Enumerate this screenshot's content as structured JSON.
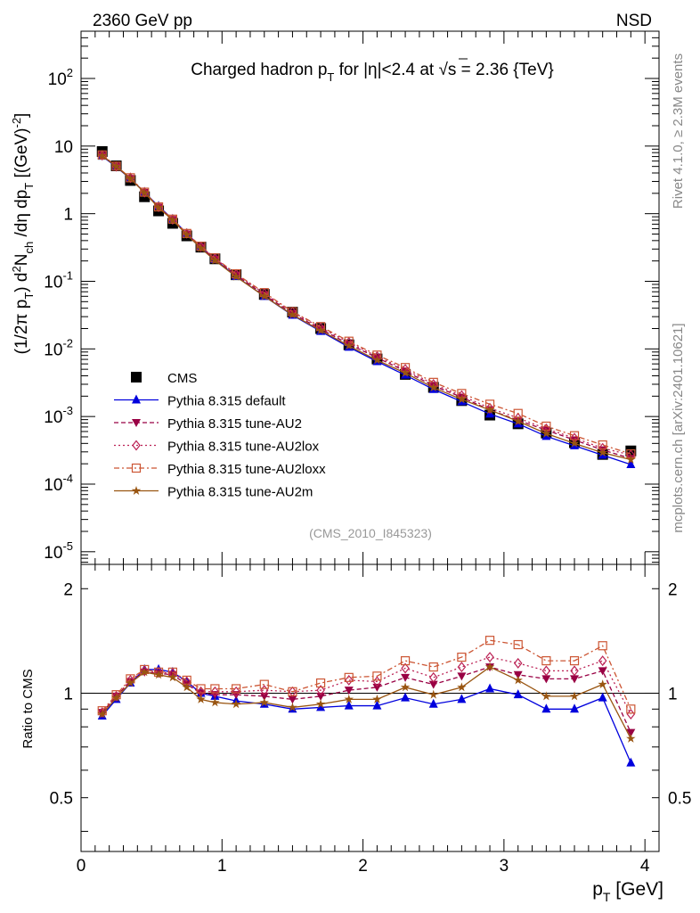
{
  "header": {
    "left": "2360 GeV pp",
    "right": "NSD"
  },
  "side_labels": {
    "top": "Rivet 4.1.0, ≥ 2.3M events",
    "bottom": "mcplots.cern.ch [arXiv:2401.10621]"
  },
  "colors": {
    "cms": "#000000",
    "default": "#0000dd",
    "au2": "#990044",
    "au2lox": "#bb2255",
    "au2loxx": "#cc5533",
    "au2m": "#995511"
  },
  "chart_data": [
    {
      "type": "line",
      "panel": "main",
      "title": "Charged hadron p_T for |η|<2.4 at √s = 2.36 {TeV}",
      "ylabel": "(1/2π p_T) d²N_ch /dη dp_T [(GeV)^-2]",
      "xlabel": "",
      "xlim": [
        0,
        4.1
      ],
      "ylim": [
        6.5e-06,
        500
      ],
      "yscale": "log",
      "x_ticks": [
        0,
        1,
        2,
        3,
        4
      ],
      "y_ticks": [
        {
          "value": 100,
          "label": "10^2"
        },
        {
          "value": 10,
          "label": "10"
        },
        {
          "value": 1,
          "label": "1"
        },
        {
          "value": 0.1,
          "label": "10^-1"
        },
        {
          "value": 0.01,
          "label": "10^-2"
        },
        {
          "value": 0.001,
          "label": "10^-3"
        },
        {
          "value": 0.0001,
          "label": "10^-4"
        },
        {
          "value": 1e-05,
          "label": "10^-5"
        }
      ],
      "watermark": "(CMS_2010_I845323)",
      "x": [
        0.15,
        0.25,
        0.35,
        0.45,
        0.55,
        0.65,
        0.75,
        0.85,
        0.95,
        1.1,
        1.3,
        1.5,
        1.7,
        1.9,
        2.1,
        2.3,
        2.5,
        2.7,
        2.9,
        3.1,
        3.3,
        3.5,
        3.7,
        3.9
      ],
      "series": [
        {
          "name": "CMS",
          "key": "cms",
          "marker": "square",
          "values": [
            8.3,
            5.1,
            3.1,
            1.78,
            1.1,
            0.72,
            0.47,
            0.32,
            0.215,
            0.125,
            0.064,
            0.035,
            0.02,
            0.0115,
            0.0071,
            0.0042,
            0.0027,
            0.00172,
            0.00105,
            0.00078,
            0.00057,
            0.00041,
            0.000275,
            0.00031
          ]
        },
        {
          "name": "Pythia 8.315 default",
          "key": "default",
          "marker": "triangle",
          "values": [
            7.1,
            4.9,
            3.3,
            2.08,
            1.29,
            0.83,
            0.51,
            0.32,
            0.21,
            0.118,
            0.06,
            0.0315,
            0.0182,
            0.0106,
            0.0065,
            0.0041,
            0.00252,
            0.00166,
            0.00109,
            0.00078,
            0.00051,
            0.00037,
            0.000268,
            0.000195
          ]
        },
        {
          "name": "Pythia 8.315 tune-AU2",
          "key": "au2",
          "marker": "inverted-triangle",
          "values": [
            7.3,
            5.0,
            3.3,
            2.06,
            1.25,
            0.82,
            0.5,
            0.32,
            0.213,
            0.124,
            0.063,
            0.0335,
            0.0196,
            0.0118,
            0.0074,
            0.0047,
            0.00285,
            0.00193,
            0.00125,
            0.00088,
            0.00063,
            0.00045,
            0.00032,
            0.00024
          ]
        },
        {
          "name": "Pythia 8.315 tune-AU2lox",
          "key": "au2lox",
          "marker": "diamond",
          "values": [
            7.3,
            5.0,
            3.4,
            2.07,
            1.26,
            0.82,
            0.51,
            0.324,
            0.218,
            0.127,
            0.066,
            0.0353,
            0.0205,
            0.0125,
            0.0077,
            0.005,
            0.003,
            0.00204,
            0.00133,
            0.00095,
            0.00066,
            0.00048,
            0.00034,
            0.00027
          ]
        },
        {
          "name": "Pythia 8.315 tune-AU2loxx",
          "key": "au2loxx",
          "marker": "open-square",
          "values": [
            7.4,
            5.05,
            3.4,
            2.08,
            1.26,
            0.83,
            0.51,
            0.33,
            0.222,
            0.129,
            0.068,
            0.0355,
            0.0214,
            0.013,
            0.0081,
            0.0053,
            0.0032,
            0.00219,
            0.00152,
            0.00111,
            0.00072,
            0.00052,
            0.00038,
            0.00028
          ]
        },
        {
          "name": "Pythia 8.315 tune-AU2m",
          "key": "au2m",
          "marker": "star",
          "values": [
            7.2,
            5.0,
            3.3,
            2.04,
            1.23,
            0.8,
            0.49,
            0.308,
            0.203,
            0.117,
            0.06,
            0.032,
            0.0187,
            0.0111,
            0.0068,
            0.0044,
            0.00267,
            0.00179,
            0.00125,
            0.00085,
            0.00056,
            0.0004,
            0.000292,
            0.00023
          ]
        }
      ]
    },
    {
      "type": "line",
      "panel": "ratio",
      "ylabel": "Ratio to CMS",
      "xlabel": "p_T [GeV]",
      "xlim": [
        0,
        4.1
      ],
      "ylim": [
        0.35,
        2.35
      ],
      "yscale": "log",
      "x_ticks": [
        0,
        1,
        2,
        3,
        4
      ],
      "y_ticks": [
        {
          "value": 2,
          "label": "2"
        },
        {
          "value": 1,
          "label": "1"
        },
        {
          "value": 0.5,
          "label": "0.5"
        }
      ],
      "reference_line": 1,
      "x": [
        0.15,
        0.25,
        0.35,
        0.45,
        0.55,
        0.65,
        0.75,
        0.85,
        0.95,
        1.1,
        1.3,
        1.5,
        1.7,
        1.9,
        2.1,
        2.3,
        2.5,
        2.7,
        2.9,
        3.1,
        3.3,
        3.5,
        3.7,
        3.9
      ],
      "series": [
        {
          "name": "Pythia 8.315 default",
          "key": "default",
          "marker": "triangle",
          "values": [
            0.86,
            0.96,
            1.07,
            1.17,
            1.17,
            1.15,
            1.08,
            1.0,
            0.98,
            0.95,
            0.93,
            0.9,
            0.91,
            0.92,
            0.92,
            0.97,
            0.93,
            0.96,
            1.03,
            0.99,
            0.9,
            0.9,
            0.97,
            0.63
          ]
        },
        {
          "name": "Pythia 8.315 tune-AU2",
          "key": "au2",
          "marker": "inverted-triangle",
          "values": [
            0.88,
            0.98,
            1.08,
            1.15,
            1.14,
            1.13,
            1.06,
            1.0,
            0.99,
            0.99,
            0.98,
            0.96,
            0.98,
            1.02,
            1.04,
            1.11,
            1.06,
            1.12,
            1.19,
            1.13,
            1.1,
            1.1,
            1.16,
            0.77
          ]
        },
        {
          "name": "Pythia 8.315 tune-AU2lox",
          "key": "au2lox",
          "marker": "diamond",
          "values": [
            0.88,
            0.98,
            1.09,
            1.16,
            1.15,
            1.14,
            1.08,
            1.01,
            1.01,
            1.01,
            1.02,
            1.01,
            1.02,
            1.09,
            1.08,
            1.18,
            1.11,
            1.19,
            1.27,
            1.22,
            1.16,
            1.16,
            1.24,
            0.87
          ]
        },
        {
          "name": "Pythia 8.315 tune-AU2loxx",
          "key": "au2loxx",
          "marker": "open-square",
          "values": [
            0.89,
            0.99,
            1.1,
            1.17,
            1.15,
            1.15,
            1.09,
            1.03,
            1.03,
            1.03,
            1.06,
            1.01,
            1.07,
            1.11,
            1.12,
            1.24,
            1.19,
            1.27,
            1.42,
            1.38,
            1.24,
            1.24,
            1.37,
            0.9
          ]
        },
        {
          "name": "Pythia 8.315 tune-AU2m",
          "key": "au2m",
          "marker": "star",
          "values": [
            0.87,
            0.97,
            1.07,
            1.15,
            1.13,
            1.11,
            1.04,
            0.96,
            0.94,
            0.93,
            0.94,
            0.91,
            0.93,
            0.96,
            0.96,
            1.04,
            0.99,
            1.04,
            1.19,
            1.09,
            0.98,
            0.98,
            1.06,
            0.74
          ]
        }
      ]
    }
  ]
}
